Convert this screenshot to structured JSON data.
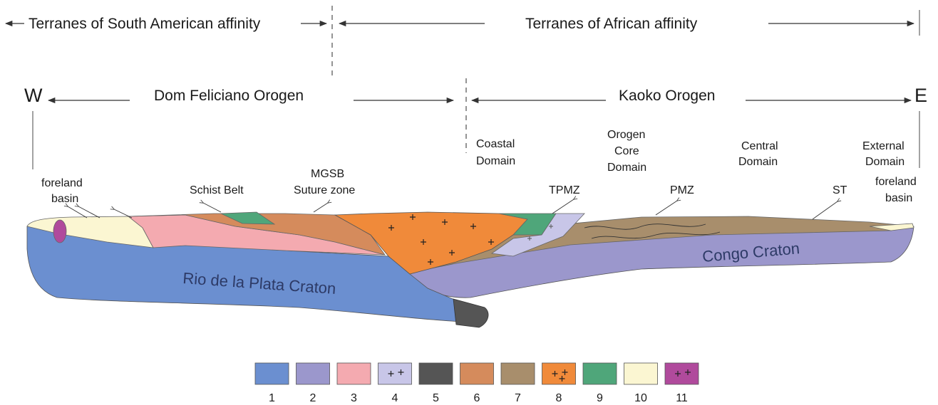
{
  "header": {
    "south_american": "Terranes of South American affinity",
    "african": "Terranes of  African affinity"
  },
  "orogens": {
    "west_letter": "W",
    "east_letter": "E",
    "dom_feliciano": "Dom Feliciano Orogen",
    "kaoko": "Kaoko Orogen"
  },
  "domains": {
    "coastal": [
      "Coastal",
      "Domain"
    ],
    "orogen_core": [
      "Orogen",
      "Core",
      "Domain"
    ],
    "central": [
      "Central",
      "Domain"
    ],
    "external": [
      "External",
      "Domain"
    ]
  },
  "features": {
    "foreland_basin_west": [
      "foreland",
      "basin"
    ],
    "schist_belt": "Schist Belt",
    "mgsb": [
      "MGSB",
      "Suture zone"
    ],
    "tpmz": "TPMZ",
    "pmz": "PMZ",
    "st": "ST",
    "foreland_basin_east": [
      "foreland",
      "basin"
    ]
  },
  "cratons": {
    "rio_de_la_plata": "Rio de la Plata Craton",
    "congo": "Congo Craton"
  },
  "legend": [
    {
      "label": "1",
      "color": "#6b8fd0",
      "pattern": "none"
    },
    {
      "label": "2",
      "color": "#9b97cc",
      "pattern": "none"
    },
    {
      "label": "3",
      "color": "#f4aab0",
      "pattern": "none"
    },
    {
      "label": "4",
      "color": "#c8c6e8",
      "pattern": "plus"
    },
    {
      "label": "5",
      "color": "#555555",
      "pattern": "none"
    },
    {
      "label": "6",
      "color": "#d58b5c",
      "pattern": "none"
    },
    {
      "label": "7",
      "color": "#a88e6c",
      "pattern": "none"
    },
    {
      "label": "8",
      "color": "#f08a3a",
      "pattern": "plus-dot"
    },
    {
      "label": "9",
      "color": "#4fa67a",
      "pattern": "none"
    },
    {
      "label": "10",
      "color": "#fbf6d2",
      "pattern": "none"
    },
    {
      "label": "11",
      "color": "#b04a9c",
      "pattern": "plus"
    }
  ]
}
